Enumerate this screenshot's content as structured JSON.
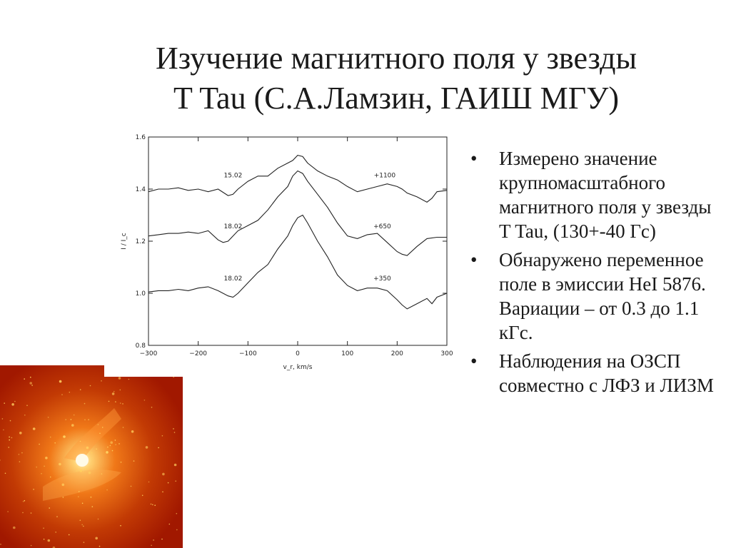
{
  "slide": {
    "title_line1": "Изучение магнитного поля у звезды",
    "title_line2": "T Tau (С.А.Ламзин, ГАИШ МГУ)"
  },
  "bullets": [
    {
      "glyph": "•",
      "text": "Измерено значение крупномасштабного магнитного поля у звезды T Tau, (130+-40 Гс)"
    },
    {
      "glyph": "•",
      "text": "Обнаружено переменное поле в эмиссии HeI 5876. Вариации – от 0.3 до 1.1 кГс."
    },
    {
      "glyph": "•",
      "text": "Наблюдения на ОЗСП совместно с ЛФЗ и ЛИЗМ"
    }
  ],
  "image": {
    "description_icon": "nebula-photo",
    "colors": {
      "background": "#b01f00",
      "glow": "#ffe08a",
      "stars": "#ffd060"
    }
  },
  "chart_data": {
    "type": "line",
    "title": "",
    "xlabel": "v_r, km/s",
    "ylabel": "I / I_c",
    "xlim": [
      -300,
      300
    ],
    "ylim": [
      0.8,
      1.6
    ],
    "xticks": [
      -300,
      -200,
      -100,
      0,
      100,
      200,
      300
    ],
    "yticks": [
      0.8,
      1.0,
      1.2,
      1.4,
      1.6
    ],
    "xtick_labels": [
      "−300",
      "−200",
      "−100",
      "0",
      "100",
      "200",
      "300"
    ],
    "ytick_labels": [
      "0.8",
      "1.0",
      "1.2",
      "1.4",
      "1.6"
    ],
    "grid": false,
    "line_color": "#222222",
    "annotations": [
      {
        "text": "15.02",
        "x": -130,
        "y": 1.445
      },
      {
        "text": "+1100",
        "x": 175,
        "y": 1.445
      },
      {
        "text": "18.02",
        "x": -130,
        "y": 1.25
      },
      {
        "text": "+650",
        "x": 170,
        "y": 1.25
      },
      {
        "text": "18.02",
        "x": -130,
        "y": 1.05
      },
      {
        "text": "+350",
        "x": 170,
        "y": 1.05
      }
    ],
    "series": [
      {
        "x": [
          -300,
          -280,
          -260,
          -240,
          -220,
          -200,
          -180,
          -160,
          -140,
          -130,
          -120,
          -100,
          -80,
          -60,
          -40,
          -20,
          -10,
          0,
          10,
          20,
          40,
          60,
          80,
          100,
          120,
          140,
          160,
          180,
          200,
          210,
          220,
          240,
          260,
          270,
          280,
          300
        ],
        "y": [
          1.39,
          1.4,
          1.4,
          1.405,
          1.395,
          1.4,
          1.39,
          1.4,
          1.375,
          1.38,
          1.4,
          1.43,
          1.45,
          1.45,
          1.48,
          1.5,
          1.51,
          1.53,
          1.525,
          1.5,
          1.47,
          1.45,
          1.435,
          1.41,
          1.39,
          1.4,
          1.41,
          1.42,
          1.41,
          1.4,
          1.385,
          1.37,
          1.35,
          1.365,
          1.39,
          1.395
        ]
      },
      {
        "x": [
          -300,
          -280,
          -260,
          -240,
          -220,
          -200,
          -180,
          -160,
          -150,
          -140,
          -130,
          -120,
          -100,
          -80,
          -60,
          -40,
          -20,
          -10,
          0,
          10,
          20,
          40,
          60,
          80,
          100,
          120,
          140,
          160,
          180,
          200,
          210,
          220,
          240,
          260,
          280,
          300
        ],
        "y": [
          1.22,
          1.225,
          1.23,
          1.23,
          1.235,
          1.23,
          1.24,
          1.205,
          1.195,
          1.2,
          1.22,
          1.24,
          1.26,
          1.28,
          1.32,
          1.37,
          1.41,
          1.45,
          1.47,
          1.46,
          1.43,
          1.38,
          1.33,
          1.27,
          1.22,
          1.21,
          1.225,
          1.23,
          1.195,
          1.16,
          1.15,
          1.145,
          1.18,
          1.21,
          1.215,
          1.215
        ]
      },
      {
        "x": [
          -300,
          -280,
          -260,
          -240,
          -220,
          -200,
          -180,
          -160,
          -140,
          -130,
          -120,
          -100,
          -80,
          -60,
          -40,
          -20,
          -10,
          0,
          10,
          20,
          40,
          60,
          80,
          100,
          120,
          140,
          160,
          180,
          200,
          210,
          220,
          240,
          260,
          270,
          280,
          300
        ],
        "y": [
          1.005,
          1.01,
          1.01,
          1.015,
          1.01,
          1.02,
          1.025,
          1.01,
          0.99,
          0.985,
          1.0,
          1.04,
          1.08,
          1.11,
          1.17,
          1.22,
          1.26,
          1.29,
          1.3,
          1.27,
          1.2,
          1.14,
          1.07,
          1.03,
          1.01,
          1.02,
          1.02,
          1.01,
          0.975,
          0.955,
          0.94,
          0.96,
          0.98,
          0.96,
          0.985,
          1.0
        ]
      }
    ]
  }
}
